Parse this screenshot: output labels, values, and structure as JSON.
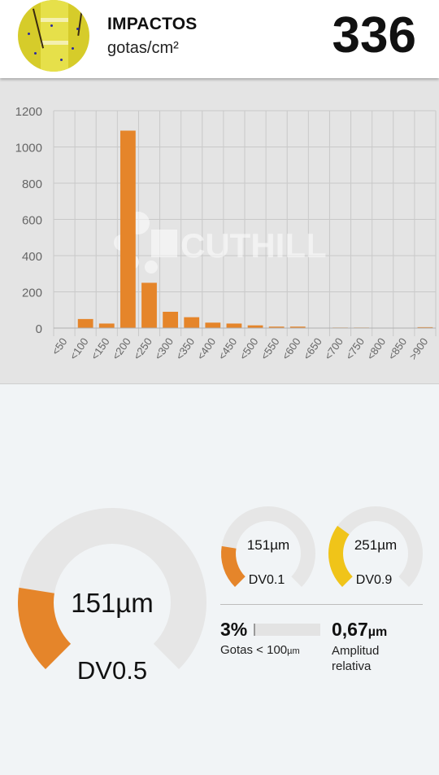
{
  "header": {
    "title": "IMPACTOS",
    "subtitle": "gotas/cm²",
    "count": "336"
  },
  "watermark": "CUTHILL",
  "chart_data": {
    "type": "bar",
    "categories": [
      "<50",
      "<100",
      "<150",
      "<200",
      "<250",
      "<300",
      "<350",
      "<400",
      "<450",
      "<500",
      "<550",
      "<600",
      "<650",
      "<700",
      "<750",
      "<800",
      "<850",
      ">900"
    ],
    "values": [
      0,
      50,
      25,
      1090,
      250,
      90,
      60,
      30,
      25,
      15,
      8,
      8,
      2,
      3,
      3,
      1,
      1,
      5
    ],
    "yticks": [
      "0",
      "200",
      "400",
      "600",
      "800",
      "1000",
      "1200"
    ],
    "ylim": [
      0,
      1200
    ],
    "grid": true,
    "color": "#e5852a"
  },
  "gauges": {
    "dv05": {
      "value_text": "151µm",
      "label": "DV0.5",
      "fraction": 0.2,
      "color": "#e5852a"
    },
    "dv01": {
      "value_text": "151µm",
      "label": "DV0.1",
      "fraction": 0.2,
      "color": "#e5852a"
    },
    "dv09": {
      "value_text": "251µm",
      "label": "DV0.9",
      "fraction": 0.3,
      "color": "#f0c419"
    },
    "track_color": "#e6e6e6"
  },
  "stats": {
    "gotas_pct": "3%",
    "gotas_fraction": 0.03,
    "gotas_label": "Gotas < 100",
    "gotas_unit": "µm",
    "amplitud_value": "0,67",
    "amplitud_unit": "µm",
    "amplitud_label": "Amplitud relativa"
  }
}
